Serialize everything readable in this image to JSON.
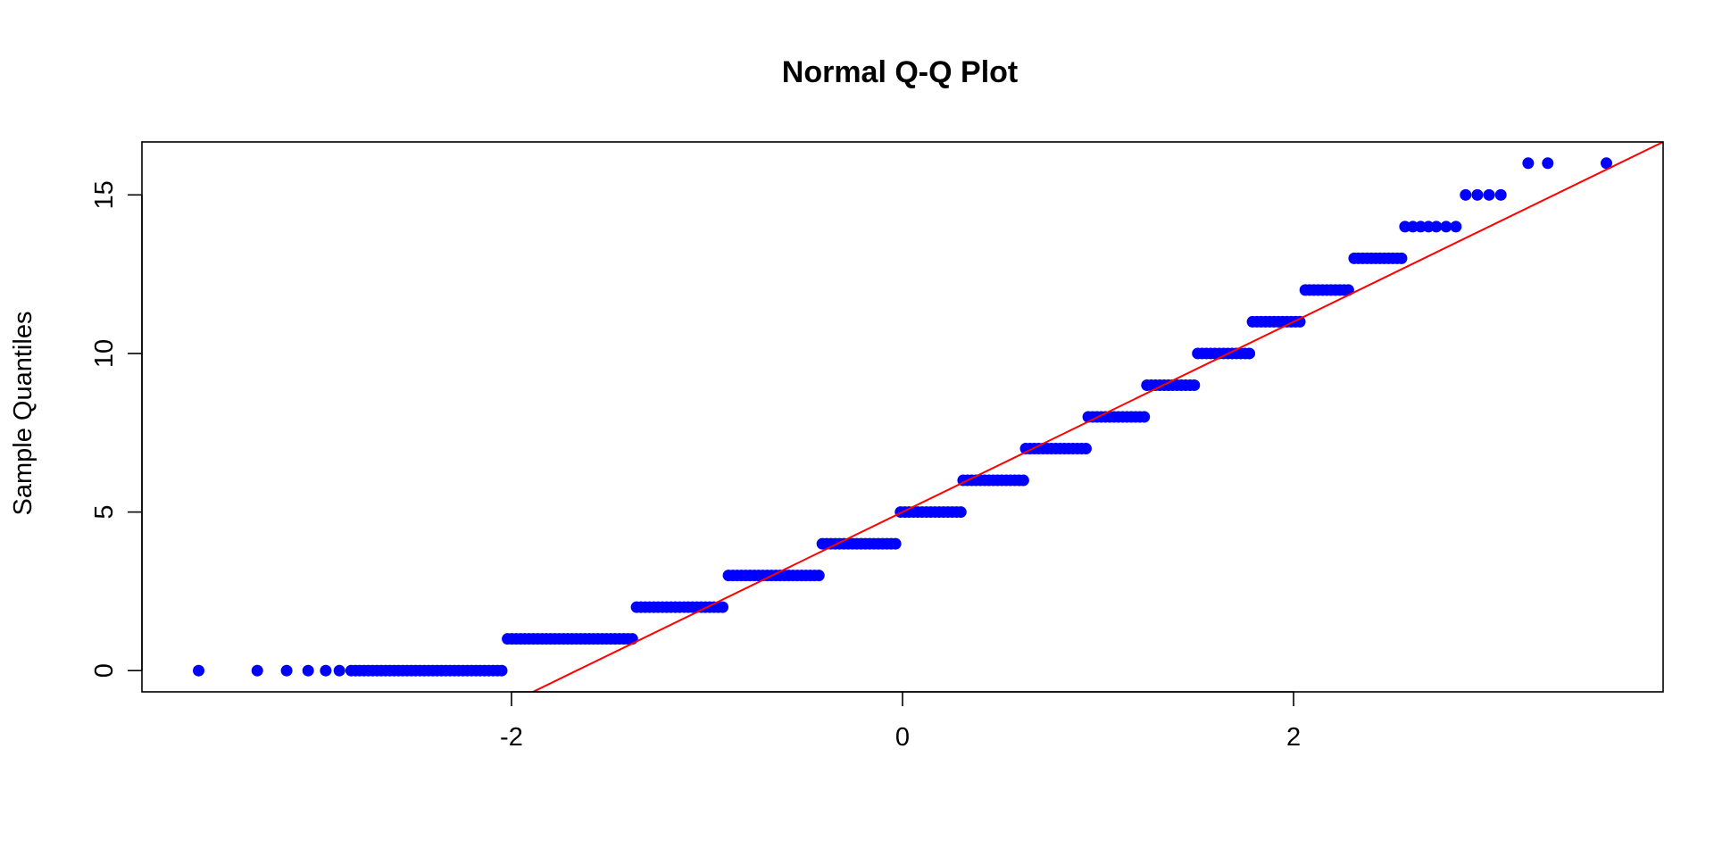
{
  "chart_data": {
    "type": "scatter",
    "title": "Normal Q-Q Plot",
    "xlabel": "",
    "ylabel": "Sample Quantiles",
    "xlim": [
      -3.89,
      3.89
    ],
    "ylim": [
      -0.67,
      16.67
    ],
    "x_ticks": [
      "-2",
      "0",
      "2"
    ],
    "y_ticks": [
      "0",
      "5",
      "10",
      "15"
    ],
    "grid": false,
    "legend": "none",
    "point_color": "#0000FF",
    "line_color": "#FF0000",
    "reference_line": {
      "intercept": 5.0,
      "slope": 3.0
    },
    "points": [
      {
        "y": 0,
        "x_from": -3.6,
        "x_to": -2.03,
        "isolated": [
          -3.6,
          -3.3,
          -3.15,
          -3.04,
          -2.95,
          -2.88,
          -2.82
        ]
      },
      {
        "y": 1,
        "x_from": -2.02,
        "x_to": -1.37
      },
      {
        "y": 2,
        "x_from": -1.36,
        "x_to": -0.9
      },
      {
        "y": 3,
        "x_from": -0.89,
        "x_to": -0.42
      },
      {
        "y": 4,
        "x_from": -0.41,
        "x_to": -0.02
      },
      {
        "y": 5,
        "x_from": -0.01,
        "x_to": 0.3
      },
      {
        "y": 6,
        "x_from": 0.31,
        "x_to": 0.62
      },
      {
        "y": 7,
        "x_from": 0.63,
        "x_to": 0.94
      },
      {
        "y": 8,
        "x_from": 0.95,
        "x_to": 1.24
      },
      {
        "y": 9,
        "x_from": 1.25,
        "x_to": 1.5
      },
      {
        "y": 10,
        "x_from": 1.51,
        "x_to": 1.78
      },
      {
        "y": 11,
        "x_from": 1.79,
        "x_to": 2.05
      },
      {
        "y": 12,
        "x_from": 2.06,
        "x_to": 2.3
      },
      {
        "y": 13,
        "x_from": 2.31,
        "x_to": 2.56
      },
      {
        "y": 14,
        "x_from": 2.57,
        "x_to": 2.83,
        "isolated": [
          2.57,
          2.61,
          2.65,
          2.69,
          2.73,
          2.78,
          2.83
        ]
      },
      {
        "y": 15,
        "x_from": 2.88,
        "x_to": 3.06,
        "isolated": [
          2.88,
          2.94,
          3.0,
          3.06
        ]
      },
      {
        "y": 16,
        "x_from": 3.2,
        "x_to": 3.6,
        "isolated": [
          3.2,
          3.3,
          3.6
        ]
      }
    ]
  }
}
